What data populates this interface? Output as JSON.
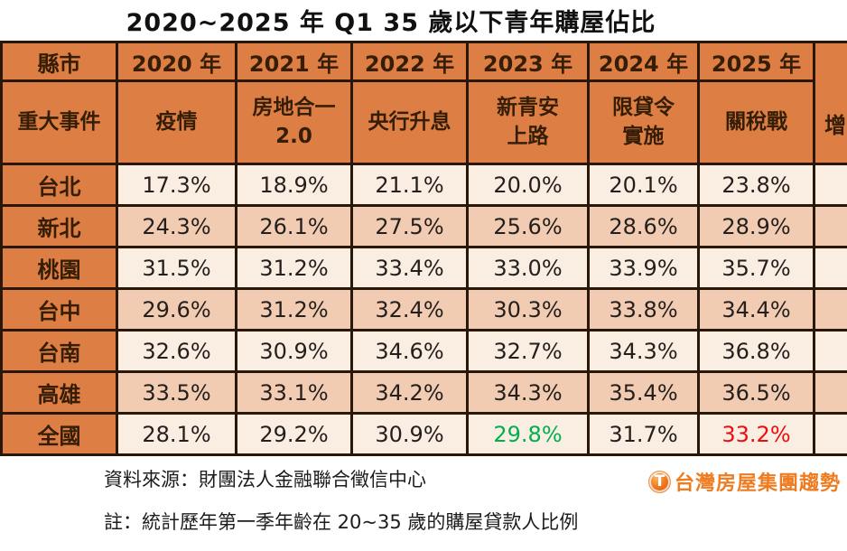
{
  "title": "2020~2025 年 Q1  35 歲以下青年購屋佔比",
  "colors": {
    "header_orange": "#dd7f44",
    "row_light": "#faeee3",
    "row_dark": "#f2ccb2",
    "border": "#2a1708",
    "highlight_green": "#00b050",
    "highlight_red": "#e90f0f",
    "logo_orange": "#ee7c21"
  },
  "table": {
    "corner_header": "縣市",
    "event_header": "重大事件",
    "years": [
      "2020 年",
      "2021 年",
      "2022 年",
      "2023 年",
      "2024 年",
      "2025 年"
    ],
    "events": [
      "疫情",
      "房地合一\n2.0",
      "央行升息",
      "新青安\n上路",
      "限貸令\n實施",
      "關稅戰"
    ],
    "cut_column_header": "增",
    "rows": [
      {
        "label": "台北",
        "values": [
          "17.3%",
          "18.9%",
          "21.1%",
          "20.0%",
          "20.1%",
          "23.8%"
        ],
        "value_colors": {}
      },
      {
        "label": "新北",
        "values": [
          "24.3%",
          "26.1%",
          "27.5%",
          "25.6%",
          "28.6%",
          "28.9%"
        ],
        "value_colors": {}
      },
      {
        "label": "桃園",
        "values": [
          "31.5%",
          "31.2%",
          "33.4%",
          "33.0%",
          "33.9%",
          "35.7%"
        ],
        "value_colors": {}
      },
      {
        "label": "台中",
        "values": [
          "29.6%",
          "31.2%",
          "32.4%",
          "30.3%",
          "33.8%",
          "34.4%"
        ],
        "value_colors": {}
      },
      {
        "label": "台南",
        "values": [
          "32.6%",
          "30.9%",
          "34.6%",
          "32.7%",
          "34.3%",
          "36.8%"
        ],
        "value_colors": {}
      },
      {
        "label": "高雄",
        "values": [
          "33.5%",
          "33.1%",
          "34.2%",
          "34.3%",
          "35.4%",
          "36.5%"
        ],
        "value_colors": {}
      },
      {
        "label": "全國",
        "values": [
          "28.1%",
          "29.2%",
          "30.9%",
          "29.8%",
          "31.7%",
          "33.2%"
        ],
        "value_colors": {
          "3": "#00b050",
          "5": "#e90f0f"
        }
      }
    ]
  },
  "footer": {
    "source": "資料來源：財團法人金融聯合徵信中心",
    "note": "註：統計歷年第一季年齡在 20~35 歲的購屋貸款人比例"
  },
  "logo": {
    "icon_glyph": "T",
    "text": "台灣房屋集團趨勢"
  },
  "chart_data": {
    "type": "table",
    "title": "2020~2025 年 Q1 35 歲以下青年購屋佔比",
    "unit": "percent",
    "columns": [
      "2020 年",
      "2021 年",
      "2022 年",
      "2023 年",
      "2024 年",
      "2025 年"
    ],
    "column_events": [
      "疫情",
      "房地合一 2.0",
      "央行升息",
      "新青安上路",
      "限貸令實施",
      "關稅戰"
    ],
    "series": [
      {
        "name": "台北",
        "values": [
          17.3,
          18.9,
          21.1,
          20.0,
          20.1,
          23.8
        ]
      },
      {
        "name": "新北",
        "values": [
          24.3,
          26.1,
          27.5,
          25.6,
          28.6,
          28.9
        ]
      },
      {
        "name": "桃園",
        "values": [
          31.5,
          31.2,
          33.4,
          33.0,
          33.9,
          35.7
        ]
      },
      {
        "name": "台中",
        "values": [
          29.6,
          31.2,
          32.4,
          30.3,
          33.8,
          34.4
        ]
      },
      {
        "name": "台南",
        "values": [
          32.6,
          30.9,
          34.6,
          32.7,
          34.3,
          36.8
        ]
      },
      {
        "name": "高雄",
        "values": [
          33.5,
          33.1,
          34.2,
          34.3,
          35.4,
          36.5
        ]
      },
      {
        "name": "全國",
        "values": [
          28.1,
          29.2,
          30.9,
          29.8,
          31.7,
          33.2
        ]
      }
    ],
    "annotations": [
      {
        "row": "全國",
        "column": "2023 年",
        "value": 29.8,
        "color": "#00b050"
      },
      {
        "row": "全國",
        "column": "2025 年",
        "value": 33.2,
        "color": "#e90f0f"
      }
    ],
    "source_note": "資料來源：財團法人金融聯合徵信中心",
    "footnote": "註：統計歷年第一季年齡在 20~35 歲的購屋貸款人比例"
  }
}
